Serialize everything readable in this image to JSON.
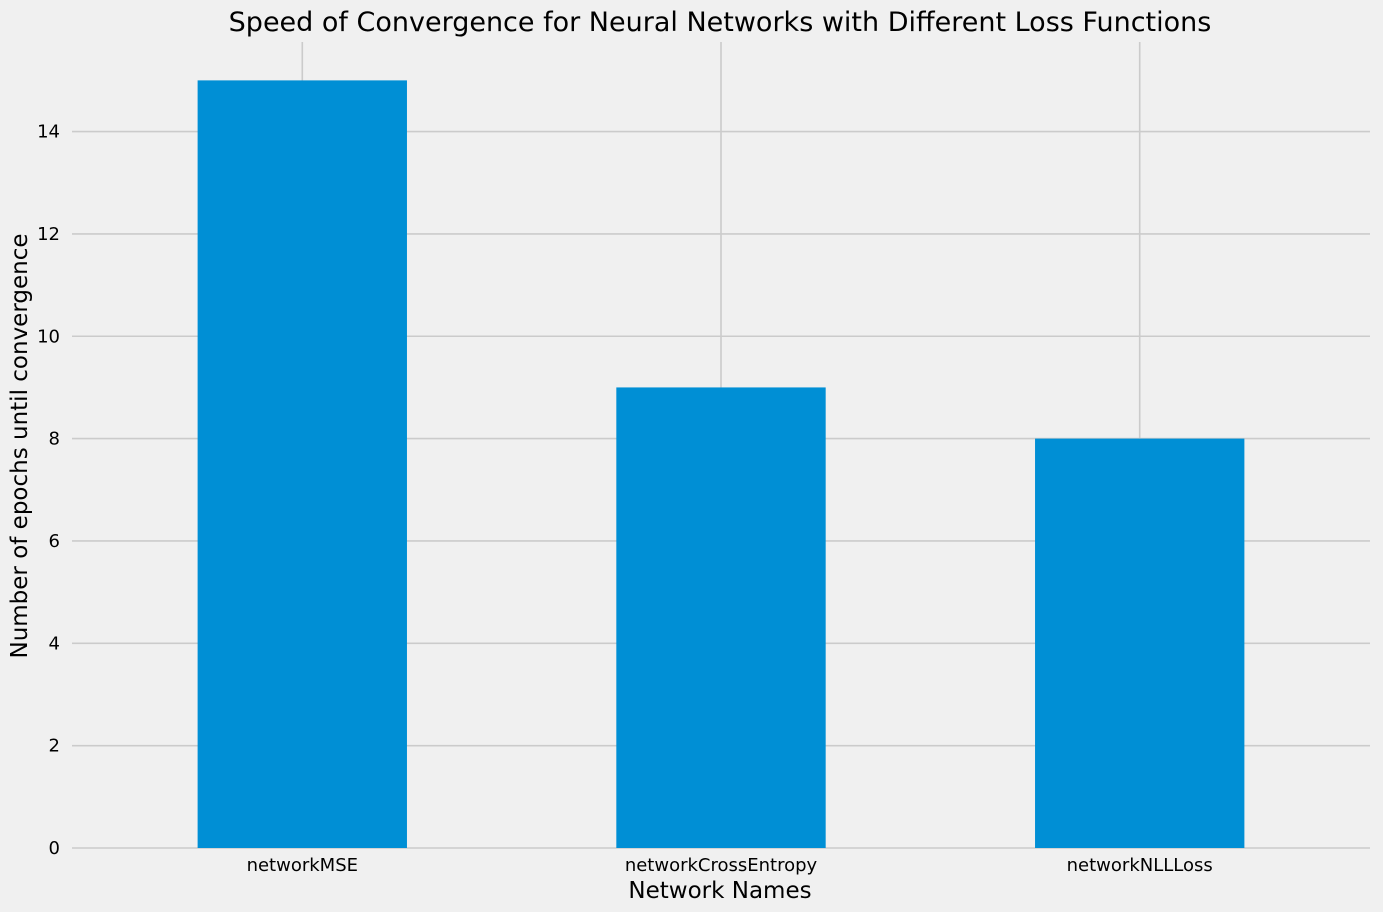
{
  "chart_data": {
    "type": "bar",
    "title": "Speed of Convergence for Neural Networks with Different Loss Functions",
    "xlabel": "Network Names",
    "ylabel": "Number of epochs until convergence",
    "categories": [
      "networkMSE",
      "networkCrossEntropy",
      "networkNLLLoss"
    ],
    "values": [
      15,
      9,
      8
    ],
    "ylim": [
      0,
      15.75
    ],
    "yticks": [
      0,
      2,
      4,
      6,
      8,
      10,
      12,
      14
    ],
    "grid": true,
    "legend": "none",
    "colors": {
      "bar": "#008fd5",
      "grid": "#cbcbcb",
      "background": "#f0f0f0"
    }
  }
}
